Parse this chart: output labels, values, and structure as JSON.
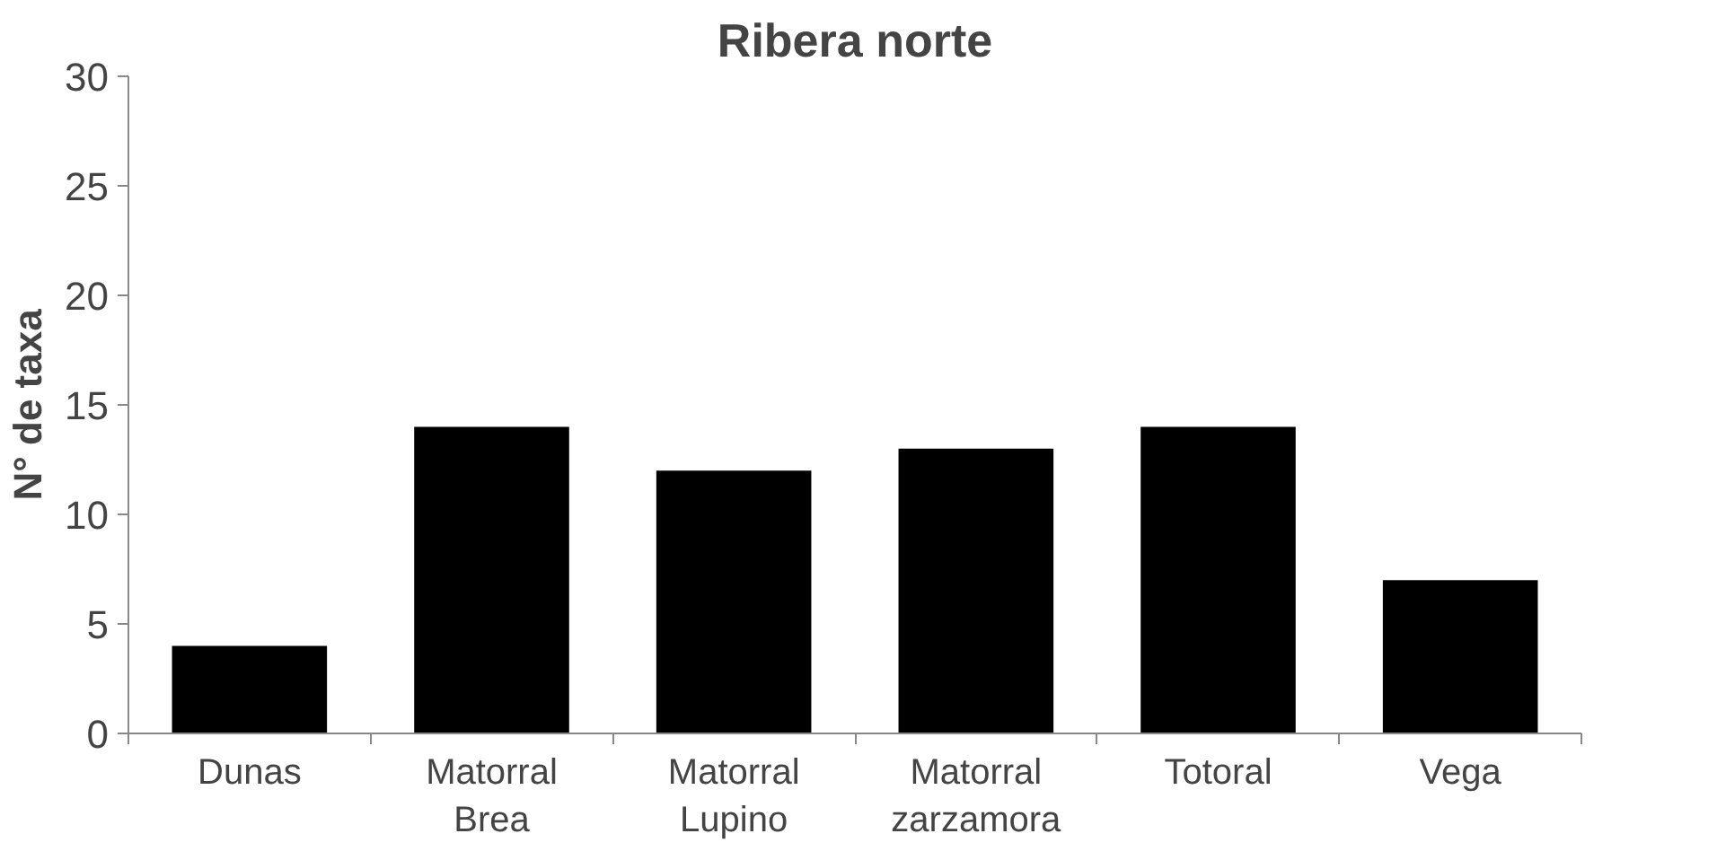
{
  "chart_data": {
    "type": "bar",
    "title": "Ribera norte",
    "ylabel": "N° de taxa",
    "categories": [
      "Dunas",
      "Matorral Brea",
      "Matorral Lupino",
      "Matorral zarzamora",
      "Totoral",
      "Vega"
    ],
    "values": [
      4,
      14,
      12,
      13,
      14,
      7
    ],
    "color": "#000000",
    "ylim": [
      0,
      30
    ],
    "yticks": [
      0,
      5,
      10,
      15,
      20,
      25,
      30
    ]
  }
}
